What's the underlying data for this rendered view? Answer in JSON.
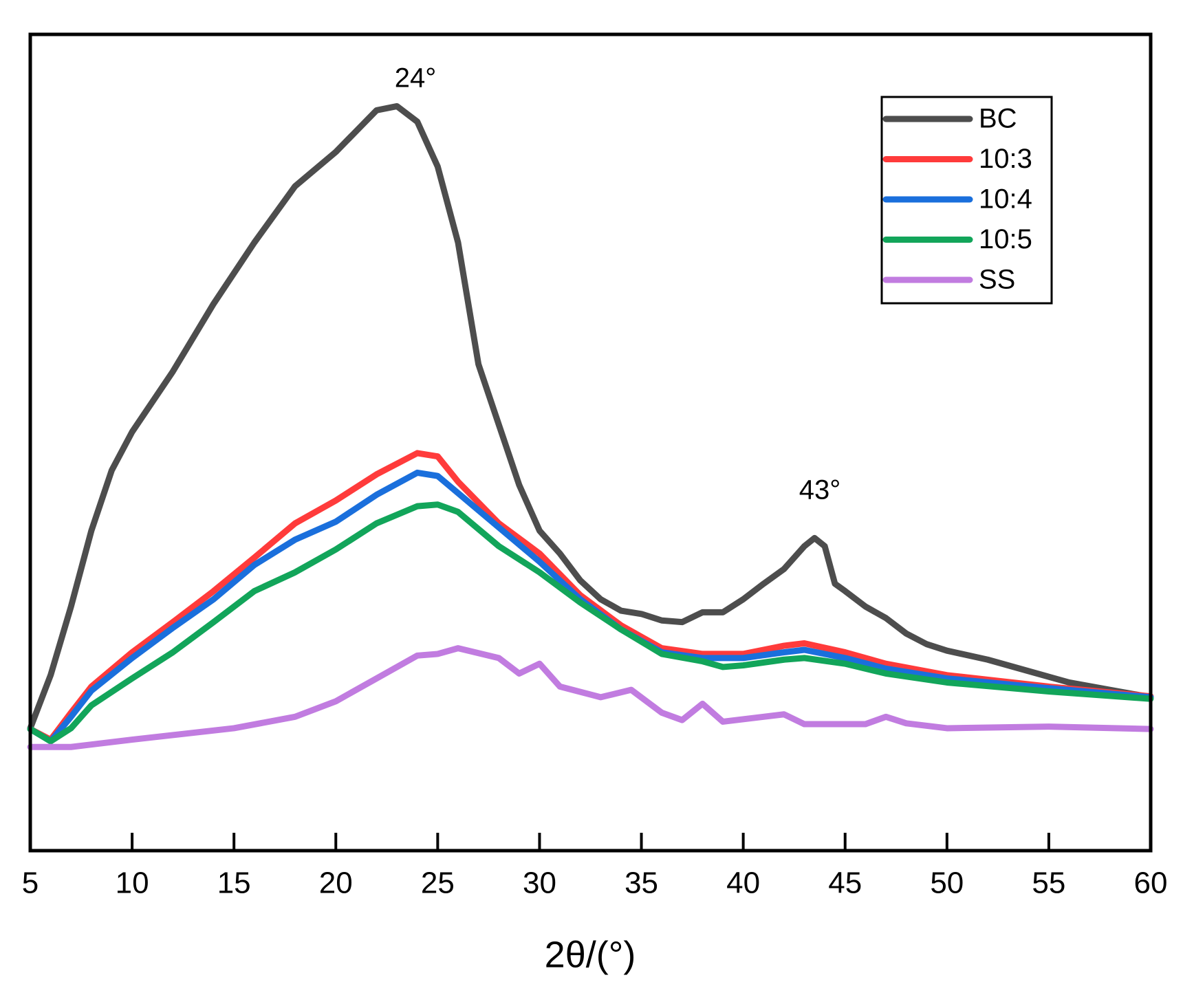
{
  "chart_data": {
    "type": "line",
    "x_label": "2θ/(°)",
    "xlim": [
      5,
      60
    ],
    "xticks": [
      5,
      10,
      15,
      20,
      25,
      30,
      35,
      40,
      45,
      50,
      55,
      60
    ],
    "ylim": [
      0,
      100
    ],
    "legend": "upper right",
    "annotations": [
      "24°",
      "43°"
    ],
    "series": [
      {
        "name": "BC",
        "color": "#4d4d4d",
        "x": [
          5,
          6,
          7,
          8,
          9,
          10,
          12,
          14,
          16,
          18,
          20,
          22,
          23,
          24,
          25,
          26,
          27,
          28,
          29,
          30,
          31,
          32,
          33,
          34,
          35,
          36,
          37,
          38,
          39,
          40,
          41,
          42,
          43,
          43.5,
          44,
          44.5,
          45,
          46,
          47,
          48,
          49,
          50,
          52,
          54,
          56,
          58,
          60
        ],
        "values": [
          15.0,
          21.5,
          29.9,
          39.2,
          46.6,
          51.3,
          58.7,
          67.0,
          74.5,
          81.4,
          85.6,
          90.7,
          91.2,
          89.3,
          83.8,
          74.5,
          59.6,
          52.2,
          44.8,
          39.2,
          36.4,
          33.1,
          30.8,
          29.4,
          29.0,
          28.2,
          28.0,
          29.2,
          29.2,
          30.8,
          32.7,
          34.5,
          37.3,
          38.3,
          37.3,
          32.7,
          31.8,
          29.9,
          28.5,
          26.6,
          25.3,
          24.5,
          23.4,
          22.0,
          20.6,
          19.7,
          18.8
        ]
      },
      {
        "name": "10:3",
        "color": "#ff3b3b",
        "x": [
          5,
          6,
          7,
          8,
          10,
          12,
          14,
          16,
          18,
          20,
          22,
          24,
          25,
          26,
          28,
          30,
          32,
          34,
          36,
          38,
          40,
          42,
          43,
          45,
          47,
          50,
          55,
          60
        ],
        "values": [
          14.9,
          13.6,
          16.9,
          20.1,
          24.3,
          28.0,
          31.8,
          35.9,
          40.1,
          42.9,
          46.1,
          48.7,
          48.3,
          45.2,
          40.1,
          36.4,
          31.3,
          27.6,
          24.8,
          24.1,
          24.1,
          25.1,
          25.4,
          24.3,
          22.9,
          21.5,
          20.1,
          18.9
        ]
      },
      {
        "name": "10:4",
        "color": "#1a6fdc",
        "x": [
          5,
          6,
          7,
          8,
          10,
          12,
          14,
          16,
          18,
          20,
          22,
          24,
          25,
          26,
          28,
          30,
          32,
          34,
          36,
          38,
          40,
          42,
          43,
          45,
          47,
          50,
          55,
          60
        ],
        "values": [
          14.9,
          13.4,
          16.4,
          19.6,
          23.6,
          27.3,
          30.8,
          35.0,
          38.1,
          40.3,
          43.6,
          46.3,
          45.9,
          43.8,
          39.6,
          35.4,
          30.8,
          27.1,
          24.3,
          23.6,
          23.6,
          24.3,
          24.6,
          23.6,
          22.3,
          21.1,
          19.9,
          18.8
        ]
      },
      {
        "name": "10:5",
        "color": "#12a55a",
        "x": [
          5,
          6,
          7,
          8,
          10,
          12,
          14,
          16,
          18,
          20,
          22,
          24,
          25,
          26,
          28,
          30,
          32,
          34,
          36,
          38,
          39,
          40,
          42,
          43,
          45,
          47,
          50,
          55,
          60
        ],
        "values": [
          14.9,
          13.4,
          15.0,
          17.8,
          21.1,
          24.3,
          28.0,
          31.8,
          34.1,
          36.9,
          40.1,
          42.2,
          42.4,
          41.5,
          37.3,
          34.1,
          30.4,
          27.1,
          24.1,
          23.2,
          22.5,
          22.7,
          23.4,
          23.6,
          22.9,
          21.7,
          20.6,
          19.5,
          18.6
        ]
      },
      {
        "name": "SS",
        "color": "#c17ce0",
        "x": [
          5,
          7,
          10,
          15,
          18,
          20,
          22,
          24,
          25,
          26,
          28,
          29,
          30,
          31,
          33,
          34.5,
          36,
          37,
          38,
          39,
          41,
          42,
          43,
          46,
          47,
          48,
          50,
          55,
          60
        ],
        "values": [
          12.7,
          12.7,
          13.6,
          15.0,
          16.4,
          18.3,
          21.1,
          23.9,
          24.1,
          24.8,
          23.6,
          21.7,
          22.9,
          20.1,
          18.8,
          19.7,
          16.9,
          16.0,
          18.0,
          15.8,
          16.4,
          16.7,
          15.5,
          15.5,
          16.4,
          15.6,
          15.0,
          15.2,
          14.9
        ]
      }
    ]
  }
}
